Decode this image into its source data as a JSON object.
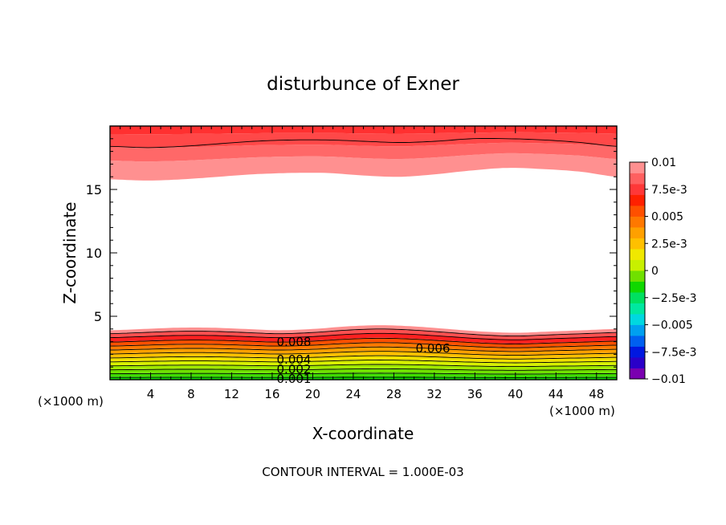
{
  "chart_data": {
    "type": "heatmap",
    "title": "disturbunce of Exner",
    "xlabel": "X-coordinate",
    "ylabel": "Z-coordinate",
    "x_unit_label": "(×1000 m)",
    "y_unit_label": "(×1000 m)",
    "xlim": [
      0,
      50
    ],
    "ylim": [
      0,
      20
    ],
    "x_ticks": [
      4,
      8,
      12,
      16,
      20,
      24,
      28,
      32,
      36,
      40,
      44,
      48
    ],
    "y_ticks": [
      5,
      10,
      15
    ],
    "footnote": "CONTOUR INTERVAL = 1.000E-03",
    "contour_labels": [
      "0.008",
      "0.006",
      "0.004",
      "0.002",
      "0.001"
    ],
    "colorbar": {
      "range": [
        -0.01,
        0.01
      ],
      "tick_labels": [
        "0.01",
        "7.5e-3",
        "0.005",
        "2.5e-3",
        "0",
        "-2.5e-3",
        "-0.005",
        "-7.5e-3",
        "-0.01"
      ],
      "colors": [
        "#7a00b0",
        "#2a00c8",
        "#0018e0",
        "#0060f0",
        "#00a0f0",
        "#00d8e0",
        "#00e8a0",
        "#00e060",
        "#10d800",
        "#70e000",
        "#c8f000",
        "#f0e800",
        "#ffc000",
        "#ffa000",
        "#ff7800",
        "#ff5000",
        "#ff2000",
        "#ff3838",
        "#ff6060",
        "#ff9090"
      ]
    },
    "fields": {
      "lower_band_top_km": [
        3.9,
        4.0,
        4.1,
        4.1,
        4.0,
        3.9,
        4.0,
        4.2,
        4.3,
        4.2,
        4.0,
        3.8,
        3.7,
        3.8,
        3.9,
        4.0
      ],
      "upper_band_bottom_km": [
        15.8,
        15.7,
        15.8,
        16.0,
        16.2,
        16.3,
        16.3,
        16.1,
        16.0,
        16.2,
        16.5,
        16.7,
        16.6,
        16.4,
        16.0
      ],
      "upper_contour_km": [
        18.4,
        18.3,
        18.4,
        18.6,
        18.8,
        18.9,
        18.9,
        18.8,
        18.7,
        18.8,
        19.0,
        19.0,
        18.9,
        18.7,
        18.4
      ]
    }
  }
}
